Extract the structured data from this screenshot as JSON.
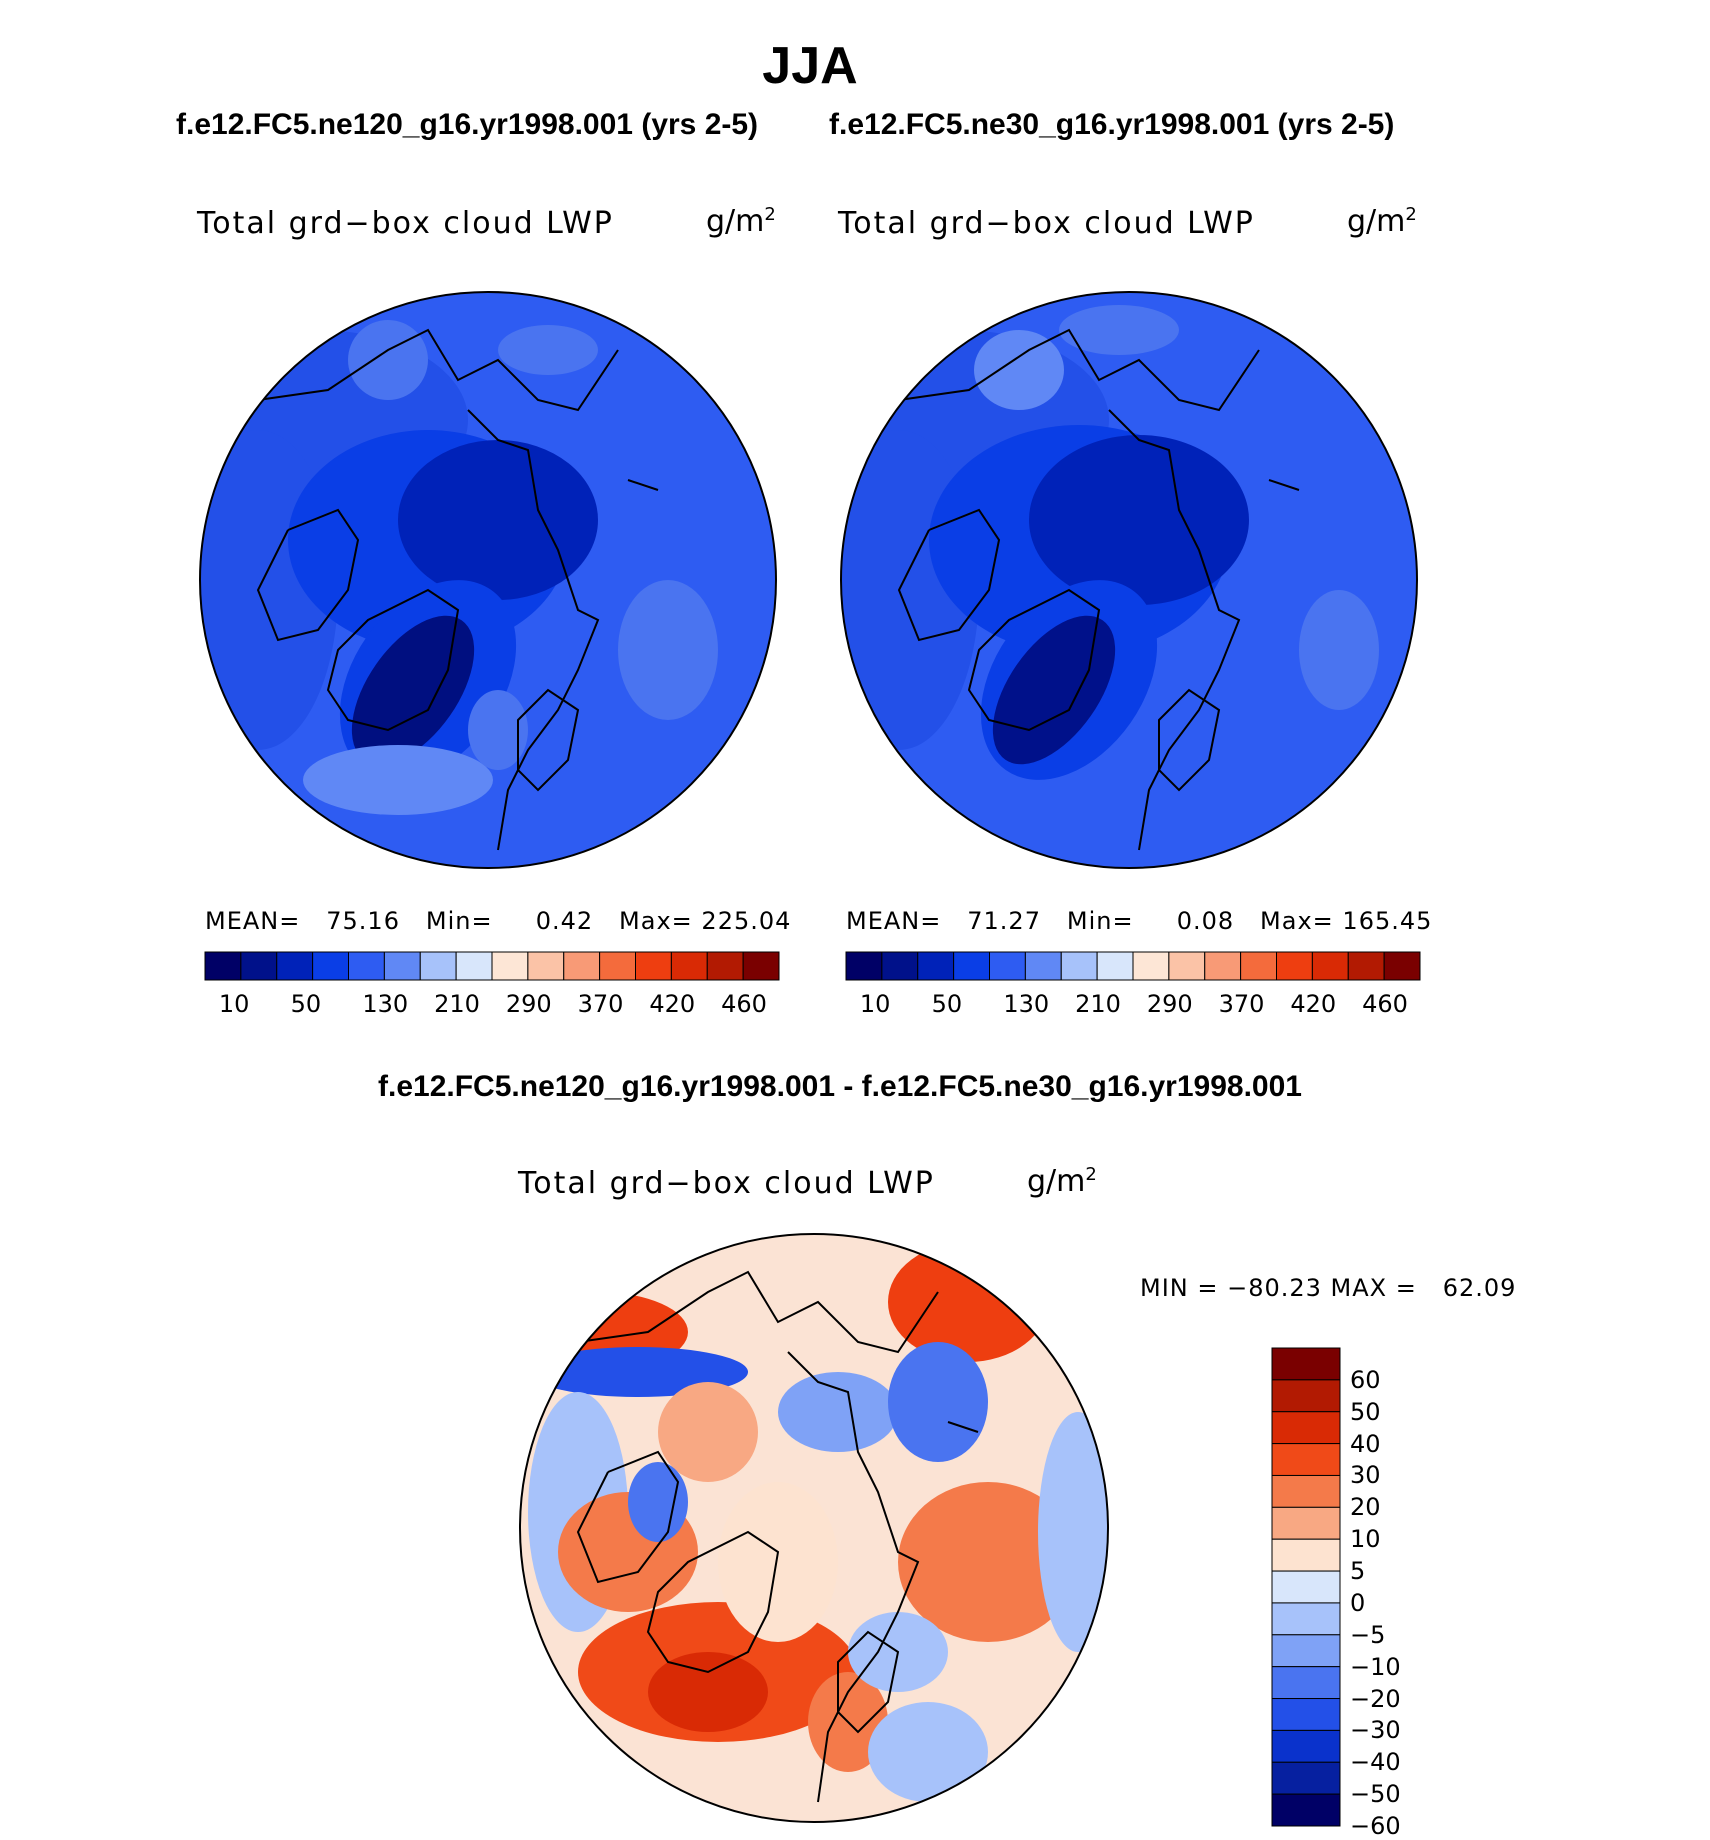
{
  "title": "JJA",
  "panels": [
    {
      "case_title": "f.e12.FC5.ne120_g16.yr1998.001 (yrs 2-5)",
      "variable": "Total grd−box cloud LWP",
      "units": "g/m",
      "units_exp": "2",
      "stats": {
        "mean_label": "MEAN=",
        "mean": "75.16",
        "min_label": "Min=",
        "min": "0.42",
        "max_label": "Max=",
        "max": "225.04"
      },
      "colorbar_labels": [
        "10",
        "50",
        "130",
        "210",
        "290",
        "370",
        "420",
        "460"
      ]
    },
    {
      "case_title": "f.e12.FC5.ne30_g16.yr1998.001 (yrs 2-5)",
      "variable": "Total grd−box cloud LWP",
      "units": "g/m",
      "units_exp": "2",
      "stats": {
        "mean_label": "MEAN=",
        "mean": "71.27",
        "min_label": "Min=",
        "min": "0.08",
        "max_label": "Max=",
        "max": "165.45"
      },
      "colorbar_labels": [
        "10",
        "50",
        "130",
        "210",
        "290",
        "370",
        "420",
        "460"
      ]
    }
  ],
  "difference": {
    "title": "f.e12.FC5.ne120_g16.yr1998.001 - f.e12.FC5.ne30_g16.yr1998.001",
    "variable": "Total grd−box cloud LWP",
    "units": "g/m",
    "units_exp": "2",
    "range_text": "MIN = −80.23 MAX =   62.09",
    "colorbar_labels": [
      "60",
      "50",
      "40",
      "30",
      "20",
      "10",
      "5",
      "0",
      "−5",
      "−10",
      "−20",
      "−30",
      "−40",
      "−50",
      "−60"
    ]
  },
  "colors": {
    "seq": [
      "#000066",
      "#00118a",
      "#0022b8",
      "#0a3ee6",
      "#2e5cf2",
      "#6088f5",
      "#a7c2fa",
      "#d8e6fb",
      "#fde6d6",
      "#fbc3a7",
      "#f89a76",
      "#f46b3c",
      "#ee3e10",
      "#d92a05",
      "#b21a02",
      "#7a0000"
    ],
    "div": [
      "#7a0000",
      "#b21a02",
      "#d92a05",
      "#f04a18",
      "#f47a4a",
      "#f8a883",
      "#fde3d0",
      "#d8e6fb",
      "#a7c2fa",
      "#7fa2f6",
      "#4a74f0",
      "#2350e8",
      "#0a32cc",
      "#0620a0",
      "#000066"
    ],
    "map_fill_main": "#2e5cf2",
    "map_fill_diff": "#fbe3d4"
  }
}
